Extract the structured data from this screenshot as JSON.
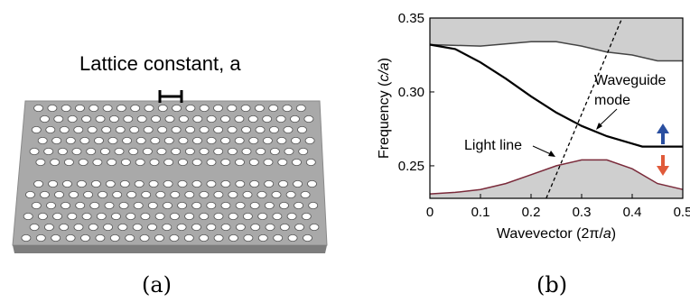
{
  "panel_a": {
    "title": "Lattice constant, a",
    "caption": "(a)",
    "slab_color": "#a9a9a9",
    "hole_color": "#ffffff"
  },
  "panel_b": {
    "caption": "(b)",
    "ylabel_prefix": "Frequency (",
    "ylabel_unit": "c/a",
    "ylabel_suffix": ")",
    "xlabel_prefix": "Wavevector (2π/",
    "xlabel_unit": "a",
    "xlabel_suffix": ")",
    "annotation_waveguide_1": "Waveguide",
    "annotation_waveguide_2": "mode",
    "annotation_light_line": "Light line",
    "arrow_up_color": "#2a4fa0",
    "arrow_down_color": "#e05a3a",
    "band_fill_color": "#cfcfcf",
    "lower_band_edge_color": "#7a2a3a"
  },
  "chart_data": {
    "type": "line",
    "xlabel": "Wavevector (2π/a)",
    "ylabel": "Frequency (c/a)",
    "xlim": [
      0,
      0.5
    ],
    "ylim": [
      0.228,
      0.35
    ],
    "xticks": [
      "0",
      "0.1",
      "0.2",
      "0.3",
      "0.4",
      "0.5"
    ],
    "yticks": [
      "0.25",
      "0.30",
      "0.35"
    ],
    "grid": false,
    "series": [
      {
        "name": "Waveguide mode",
        "x": [
          0,
          0.05,
          0.1,
          0.15,
          0.2,
          0.25,
          0.3,
          0.35,
          0.4,
          0.42,
          0.45,
          0.5
        ],
        "y": [
          0.332,
          0.329,
          0.32,
          0.309,
          0.297,
          0.286,
          0.277,
          0.27,
          0.265,
          0.263,
          0.263,
          0.263
        ]
      },
      {
        "name": "Light line",
        "x": [
          0.23,
          0.38
        ],
        "y": [
          0.228,
          0.35
        ]
      },
      {
        "x": [
          0,
          0.1,
          0.2,
          0.25,
          0.3,
          0.35,
          0.4,
          0.45,
          0.5
        ],
        "y": [
          0.332,
          0.331,
          0.334,
          0.334,
          0.331,
          0.327,
          0.325,
          0.321,
          0.321
        ]
      },
      {
        "x": [
          0,
          0.05,
          0.1,
          0.15,
          0.2,
          0.25,
          0.3,
          0.35,
          0.4,
          0.45,
          0.5
        ],
        "y": [
          0.231,
          0.232,
          0.234,
          0.238,
          0.244,
          0.25,
          0.254,
          0.254,
          0.248,
          0.238,
          0.234
        ]
      }
    ]
  }
}
